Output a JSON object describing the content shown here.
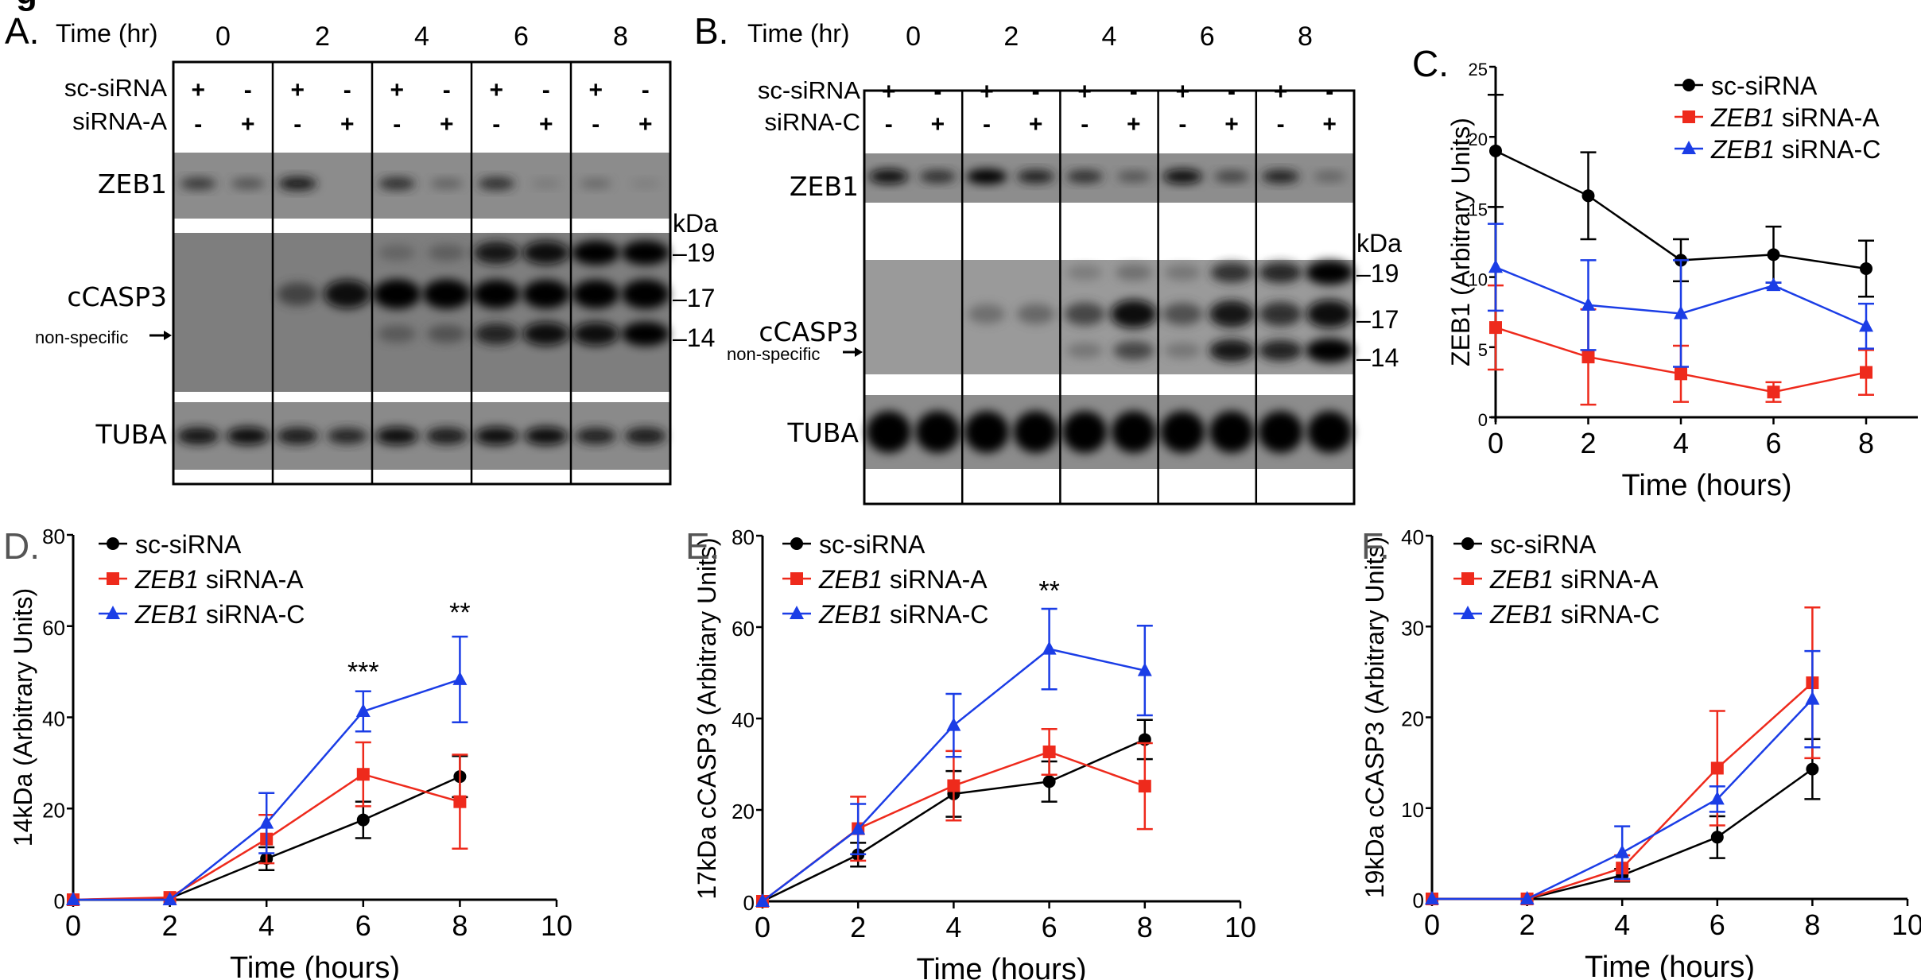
{
  "figure": {
    "corner_fragment": "g",
    "panels": {
      "A": {
        "letter": "A.",
        "time_header": "Time (hr)",
        "timepoints": [
          "0",
          "2",
          "4",
          "6",
          "8"
        ],
        "rows": [
          {
            "label": "sc-siRNA",
            "marks": [
              "+",
              "-",
              "+",
              "-",
              "+",
              "-",
              "+",
              "-",
              "+",
              "-"
            ]
          },
          {
            "label": "siRNA-A",
            "marks": [
              "-",
              "+",
              "-",
              "+",
              "-",
              "+",
              "-",
              "+",
              "-",
              "+"
            ]
          }
        ],
        "bands": [
          "ZEB1",
          "cCASP3",
          "TUBA"
        ],
        "nonspecific_label": "non-specific",
        "kda_label": "kDa",
        "markers": [
          "19",
          "17",
          "14"
        ],
        "zeb1_intensity": [
          0.55,
          0.4,
          0.75,
          0.0,
          0.6,
          0.3,
          0.6,
          0.1,
          0.25,
          0.05
        ],
        "casp19_intensity": [
          0,
          0,
          0,
          0,
          0.25,
          0.3,
          0.8,
          0.9,
          1.0,
          1.0
        ],
        "casp17_intensity": [
          0,
          0,
          0.5,
          0.9,
          1.0,
          1.0,
          0.95,
          0.95,
          0.95,
          1.0
        ],
        "casp14_intensity": [
          0,
          0,
          0,
          0,
          0.35,
          0.4,
          0.7,
          0.9,
          0.9,
          1.0
        ],
        "tuba_intensity": [
          0.8,
          0.85,
          0.75,
          0.65,
          0.85,
          0.75,
          0.9,
          0.9,
          0.7,
          0.75
        ]
      },
      "B": {
        "letter": "B.",
        "time_header": "Time (hr)",
        "timepoints": [
          "0",
          "2",
          "4",
          "6",
          "8"
        ],
        "rows": [
          {
            "label": "sc-siRNA",
            "marks": [
              "+",
              "-",
              "+",
              "-",
              "+",
              "-",
              "+",
              "-",
              "+",
              "-"
            ]
          },
          {
            "label": "siRNA-C",
            "marks": [
              "-",
              "+",
              "-",
              "+",
              "-",
              "+",
              "-",
              "+",
              "-",
              "+"
            ]
          }
        ],
        "bands": [
          "ZEB1",
          "cCASP3",
          "TUBA"
        ],
        "nonspecific_label": "non-specific",
        "kda_label": "kDa",
        "markers": [
          "19",
          "17",
          "14"
        ],
        "zeb1_intensity": [
          0.85,
          0.6,
          0.95,
          0.7,
          0.6,
          0.4,
          0.85,
          0.5,
          0.7,
          0.3
        ],
        "casp19_intensity": [
          0,
          0,
          0,
          0,
          0.15,
          0.25,
          0.2,
          0.6,
          0.65,
          1.0
        ],
        "casp17_intensity": [
          0,
          0,
          0.25,
          0.3,
          0.5,
          0.9,
          0.45,
          0.8,
          0.6,
          0.9
        ],
        "casp14_intensity": [
          0,
          0,
          0,
          0,
          0.2,
          0.5,
          0.2,
          0.8,
          0.7,
          1.0
        ],
        "tuba_intensity": [
          1,
          1,
          1,
          1,
          1,
          1,
          1,
          1,
          1,
          1
        ]
      }
    }
  },
  "chart_data": [
    {
      "panel": "C.",
      "type": "line",
      "title": "",
      "xlabel": "Time (hours)",
      "ylabel": "ZEB1 (Arbitrary Units)",
      "x": [
        0,
        2,
        4,
        6,
        8
      ],
      "xticks": [
        "0",
        "2",
        "4",
        "6",
        "8"
      ],
      "yticks": [
        "0",
        "5",
        "10",
        "15",
        "20",
        "25"
      ],
      "xlim": [
        0,
        9.4
      ],
      "ylim": [
        0,
        25
      ],
      "legend": "top-right",
      "series": [
        {
          "name": "sc-siRNA",
          "italic_prefix": "",
          "marker": "circle",
          "color": "#000000",
          "values": [
            19.0,
            15.8,
            11.2,
            11.6,
            10.6
          ],
          "err": [
            4.0,
            3.1,
            1.5,
            2.0,
            2.0
          ]
        },
        {
          "name": "siRNA-A",
          "italic_prefix": "ZEB1",
          "marker": "square",
          "color": "#ee2a1c",
          "values": [
            6.4,
            4.3,
            3.1,
            1.8,
            3.2
          ],
          "err": [
            3.0,
            3.4,
            2.0,
            0.7,
            1.6
          ]
        },
        {
          "name": "siRNA-C",
          "italic_prefix": "ZEB1",
          "marker": "triangle",
          "color": "#1b3de6",
          "values": [
            10.7,
            8.0,
            7.4,
            9.4,
            6.5
          ],
          "err": [
            3.1,
            3.2,
            3.8,
            0.2,
            1.6
          ]
        }
      ],
      "annotations": []
    },
    {
      "panel": "D.",
      "type": "line",
      "title": "",
      "xlabel": "Time (hours)",
      "ylabel": "14kDa  (Arbitrary Units)",
      "x": [
        0,
        2,
        4,
        6,
        8
      ],
      "xticks": [
        "0",
        "2",
        "4",
        "6",
        "8",
        "10"
      ],
      "yticks": [
        "0",
        "20",
        "40",
        "60",
        "80"
      ],
      "xlim": [
        0,
        10
      ],
      "ylim": [
        0,
        80
      ],
      "legend": "top-left",
      "series": [
        {
          "name": "sc-siRNA",
          "italic_prefix": "",
          "marker": "circle",
          "color": "#000000",
          "values": [
            0,
            0.3,
            9.0,
            17.5,
            27.0
          ],
          "err": [
            0,
            0,
            2.5,
            4.0,
            4.5
          ]
        },
        {
          "name": "siRNA-A",
          "italic_prefix": "ZEB1",
          "marker": "square",
          "color": "#ee2a1c",
          "values": [
            0,
            0.5,
            13.3,
            27.5,
            21.5
          ],
          "err": [
            0,
            0,
            5.3,
            7.0,
            10.3
          ]
        },
        {
          "name": "siRNA-C",
          "italic_prefix": "ZEB1",
          "marker": "triangle",
          "color": "#1b3de6",
          "values": [
            0,
            0,
            16.8,
            41.3,
            48.3
          ],
          "err": [
            0,
            0,
            6.6,
            4.4,
            9.4
          ]
        }
      ],
      "annotations": [
        {
          "x": 6,
          "y": 48,
          "text": "***"
        },
        {
          "x": 8,
          "y": 61,
          "text": "**"
        }
      ]
    },
    {
      "panel": "E.",
      "type": "line",
      "title": "",
      "xlabel": "Time (hours)",
      "ylabel": "17kDa  cCASP3 (Arbitrary Units)",
      "x": [
        0,
        2,
        4,
        6,
        8
      ],
      "xticks": [
        "0",
        "2",
        "4",
        "6",
        "8",
        "10"
      ],
      "yticks": [
        "0",
        "20",
        "40",
        "60",
        "80"
      ],
      "xlim": [
        0,
        10
      ],
      "ylim": [
        0,
        80
      ],
      "legend": "top-left",
      "series": [
        {
          "name": "sc-siRNA",
          "italic_prefix": "",
          "marker": "circle",
          "color": "#000000",
          "values": [
            0,
            10.2,
            23.5,
            26.2,
            35.4
          ],
          "err": [
            0,
            2.6,
            5.0,
            4.4,
            4.3
          ]
        },
        {
          "name": "siRNA-A",
          "italic_prefix": "ZEB1",
          "marker": "square",
          "color": "#ee2a1c",
          "values": [
            0,
            15.9,
            25.3,
            32.7,
            25.2
          ],
          "err": [
            0,
            7.0,
            7.6,
            5.0,
            9.4
          ]
        },
        {
          "name": "siRNA-C",
          "italic_prefix": "ZEB1",
          "marker": "triangle",
          "color": "#1b3de6",
          "values": [
            0,
            15.8,
            38.5,
            55.2,
            50.5
          ],
          "err": [
            0,
            5.5,
            6.9,
            8.8,
            9.8
          ]
        }
      ],
      "annotations": [
        {
          "x": 6,
          "y": 66,
          "text": "**"
        }
      ]
    },
    {
      "panel": "F.",
      "type": "line",
      "title": "",
      "xlabel": "Time (hours)",
      "ylabel": "19kDa  cCASP3 (Arbitrary Units)",
      "x": [
        0,
        2,
        4,
        6,
        8
      ],
      "xticks": [
        "0",
        "2",
        "4",
        "6",
        "8",
        "10"
      ],
      "yticks": [
        "0",
        "10",
        "20",
        "30",
        "40"
      ],
      "xlim": [
        0,
        10
      ],
      "ylim": [
        0,
        40
      ],
      "legend": "top-left",
      "series": [
        {
          "name": "sc-siRNA",
          "italic_prefix": "",
          "marker": "circle",
          "color": "#000000",
          "values": [
            0,
            0,
            2.6,
            6.8,
            14.3
          ],
          "err": [
            0,
            0,
            0.7,
            2.3,
            3.3
          ]
        },
        {
          "name": "siRNA-A",
          "italic_prefix": "ZEB1",
          "marker": "square",
          "color": "#ee2a1c",
          "values": [
            0,
            0,
            3.4,
            14.4,
            23.8
          ],
          "err": [
            0,
            0,
            1.4,
            6.3,
            8.3
          ]
        },
        {
          "name": "siRNA-C",
          "italic_prefix": "ZEB1",
          "marker": "triangle",
          "color": "#1b3de6",
          "values": [
            0,
            0,
            5.1,
            11.0,
            22.0
          ],
          "err": [
            0,
            0,
            2.9,
            1.4,
            5.3
          ]
        }
      ],
      "annotations": []
    }
  ]
}
